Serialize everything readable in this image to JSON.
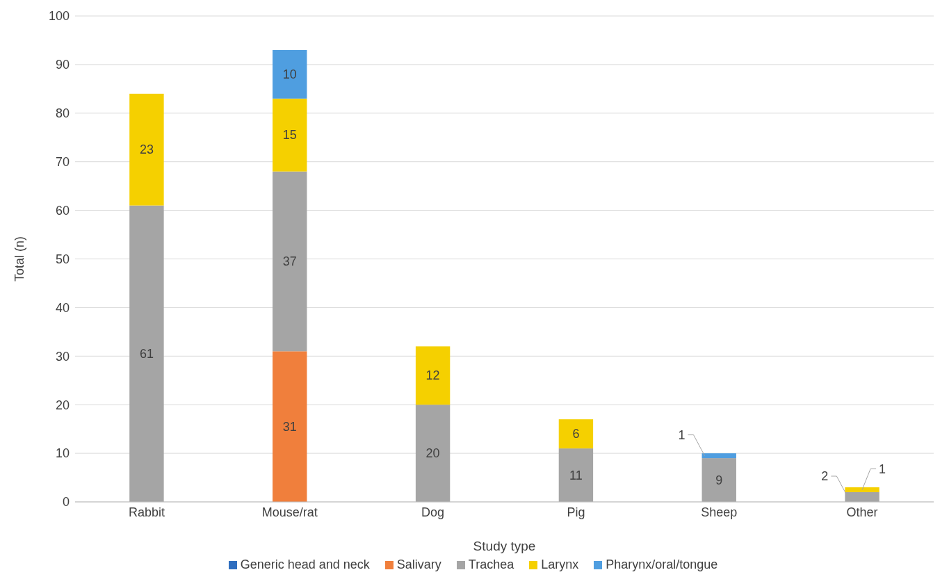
{
  "chart_data": {
    "type": "bar",
    "stacked": true,
    "xlabel": "Study type",
    "ylabel": "Total (n)",
    "categories": [
      "Rabbit",
      "Mouse/rat",
      "Dog",
      "Pig",
      "Sheep",
      "Other"
    ],
    "series": [
      {
        "name": "Generic head and neck",
        "color": "#2f6ebf",
        "values": [
          0,
          0,
          0,
          0,
          0,
          0
        ],
        "value_labels": [
          null,
          null,
          null,
          null,
          null,
          null
        ]
      },
      {
        "name": "Salivary",
        "color": "#f07f3c",
        "values": [
          0,
          31,
          0,
          0,
          0,
          0
        ],
        "value_labels": [
          null,
          "31",
          null,
          null,
          null,
          null
        ]
      },
      {
        "name": "Trachea",
        "color": "#a5a5a5",
        "values": [
          61,
          37,
          20,
          11,
          9,
          2
        ],
        "value_labels": [
          "61",
          "37",
          "20",
          "11",
          "9",
          "2"
        ]
      },
      {
        "name": "Larynx",
        "color": "#f5d000",
        "values": [
          23,
          15,
          12,
          6,
          0,
          1
        ],
        "value_labels": [
          "23",
          "15",
          "12",
          "6",
          null,
          "1"
        ]
      },
      {
        "name": "Pharynx/oral/tongue",
        "color": "#4f9ee0",
        "values": [
          0,
          10,
          0,
          0,
          1,
          0
        ],
        "value_labels": [
          null,
          "10",
          null,
          null,
          "1",
          null
        ]
      }
    ],
    "ylim": [
      0,
      100
    ],
    "yticks": [
      0,
      10,
      20,
      30,
      40,
      50,
      60,
      70,
      80,
      90,
      100
    ],
    "grid": "y",
    "legend": "bottom"
  }
}
